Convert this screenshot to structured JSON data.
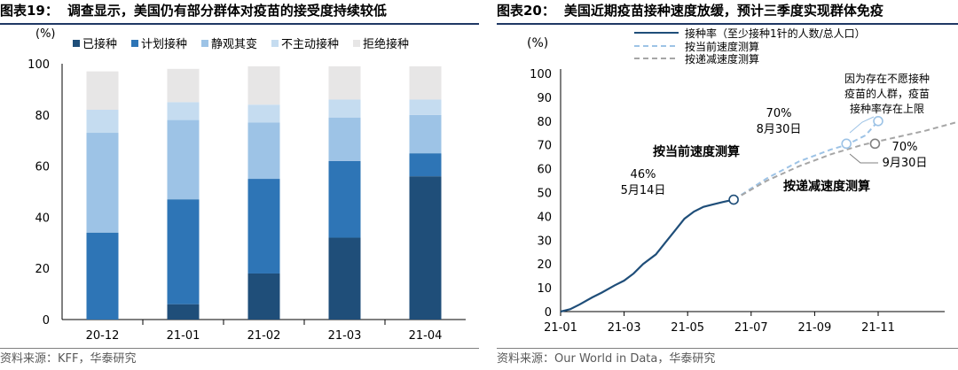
{
  "left": {
    "fig_label": "图表19：",
    "title": "调查显示，美国仍有部分群体对疫苗的接受度持续较低",
    "source": "资料来源：KFF，华泰研究",
    "chart_data": {
      "type": "bar",
      "stacked": true,
      "yunit": "(%)",
      "ylim": [
        0,
        100
      ],
      "yticks": [
        0,
        20,
        40,
        60,
        80,
        100
      ],
      "categories": [
        "20-12",
        "21-01",
        "21-02",
        "21-03",
        "21-04"
      ],
      "legend_position": "top",
      "series": [
        {
          "name": "已接种",
          "color": "#1f4e79",
          "values": [
            0,
            6,
            18,
            32,
            56
          ]
        },
        {
          "name": "计划接种",
          "color": "#2e75b6",
          "values": [
            34,
            41,
            37,
            30,
            9
          ]
        },
        {
          "name": "静观其变",
          "color": "#9dc3e6",
          "values": [
            39,
            31,
            22,
            17,
            15
          ]
        },
        {
          "name": "不主动接种",
          "color": "#c5dcf0",
          "values": [
            9,
            7,
            7,
            7,
            6
          ]
        },
        {
          "name": "拒绝接种",
          "color": "#e7e6e6",
          "values": [
            15,
            13,
            15,
            13,
            13
          ]
        }
      ]
    }
  },
  "right": {
    "fig_label": "图表20：",
    "title": "美国近期疫苗接种速度放缓，预计三季度实现群体免疫",
    "source": "资料来源：Our World in Data，华泰研究",
    "chart_data": {
      "type": "line",
      "yunit": "(%)",
      "ylim": [
        0,
        100
      ],
      "yticks": [
        0,
        10,
        20,
        30,
        40,
        50,
        60,
        70,
        80,
        90,
        100
      ],
      "xticks": [
        "21-01",
        "21-03",
        "21-05",
        "21-07",
        "21-09",
        "21-11"
      ],
      "x_is_month_index": true,
      "legend_position": "top",
      "series": [
        {
          "name": "接种率（至少接种1针的人数/总人口）",
          "color": "#1f4e79",
          "style": "solid",
          "x": [
            0,
            0.3,
            0.6,
            1.0,
            1.3,
            1.7,
            2.0,
            2.3,
            2.6,
            3.0,
            3.3,
            3.6,
            3.9,
            4.2,
            4.5,
            4.8,
            5.1,
            5.45
          ],
          "y": [
            0,
            1,
            3,
            6,
            8,
            11,
            13,
            16,
            20,
            24,
            29,
            34,
            39,
            42,
            44,
            45,
            46,
            47
          ]
        },
        {
          "name": "按当前速度测算",
          "color": "#9dc3e6",
          "style": "dashed",
          "x": [
            5.45,
            6.5,
            7.5,
            8.5,
            9.0,
            9.6,
            10.0
          ],
          "y": [
            47,
            56,
            63,
            68,
            70,
            74,
            80
          ]
        },
        {
          "name": "按递减速度测算",
          "color": "#a6a6a6",
          "style": "dashed",
          "x": [
            5.45,
            6.5,
            7.5,
            8.5,
            9.5,
            10.5,
            11.5,
            12.6
          ],
          "y": [
            47,
            55,
            61,
            66,
            70,
            73,
            76,
            80
          ]
        }
      ],
      "markers": [
        {
          "x": 5.45,
          "y": 47,
          "color": "#1f4e79"
        },
        {
          "x": 9.0,
          "y": 70.5,
          "color": "#9dc3e6"
        },
        {
          "x": 10.0,
          "y": 80,
          "color": "#9dc3e6"
        },
        {
          "x": 9.9,
          "y": 70.5,
          "color": "#808080"
        }
      ],
      "annotations": [
        {
          "id": "ann-46",
          "text": "46%",
          "color": "#000"
        },
        {
          "id": "ann-514",
          "text": "5月14日",
          "color": "#000"
        },
        {
          "id": "ann-current",
          "text": "按当前速度测算",
          "color": "#000",
          "bold": true
        },
        {
          "id": "ann-70a",
          "text": "70%",
          "color": "#000"
        },
        {
          "id": "ann-830",
          "text": "8月30日",
          "color": "#000"
        },
        {
          "id": "ann-70b",
          "text": "70%",
          "color": "#000"
        },
        {
          "id": "ann-930",
          "text": "9月30日",
          "color": "#000"
        },
        {
          "id": "ann-decline",
          "text": "按递减速度测算",
          "color": "#000",
          "bold": true
        },
        {
          "id": "ann-herd1",
          "text": "因为存在不愿接种",
          "color": "#000"
        },
        {
          "id": "ann-herd2",
          "text": "疫苗的人群，疫苗",
          "color": "#000"
        },
        {
          "id": "ann-herd3",
          "text": "接种率存在上限",
          "color": "#000"
        }
      ]
    }
  }
}
